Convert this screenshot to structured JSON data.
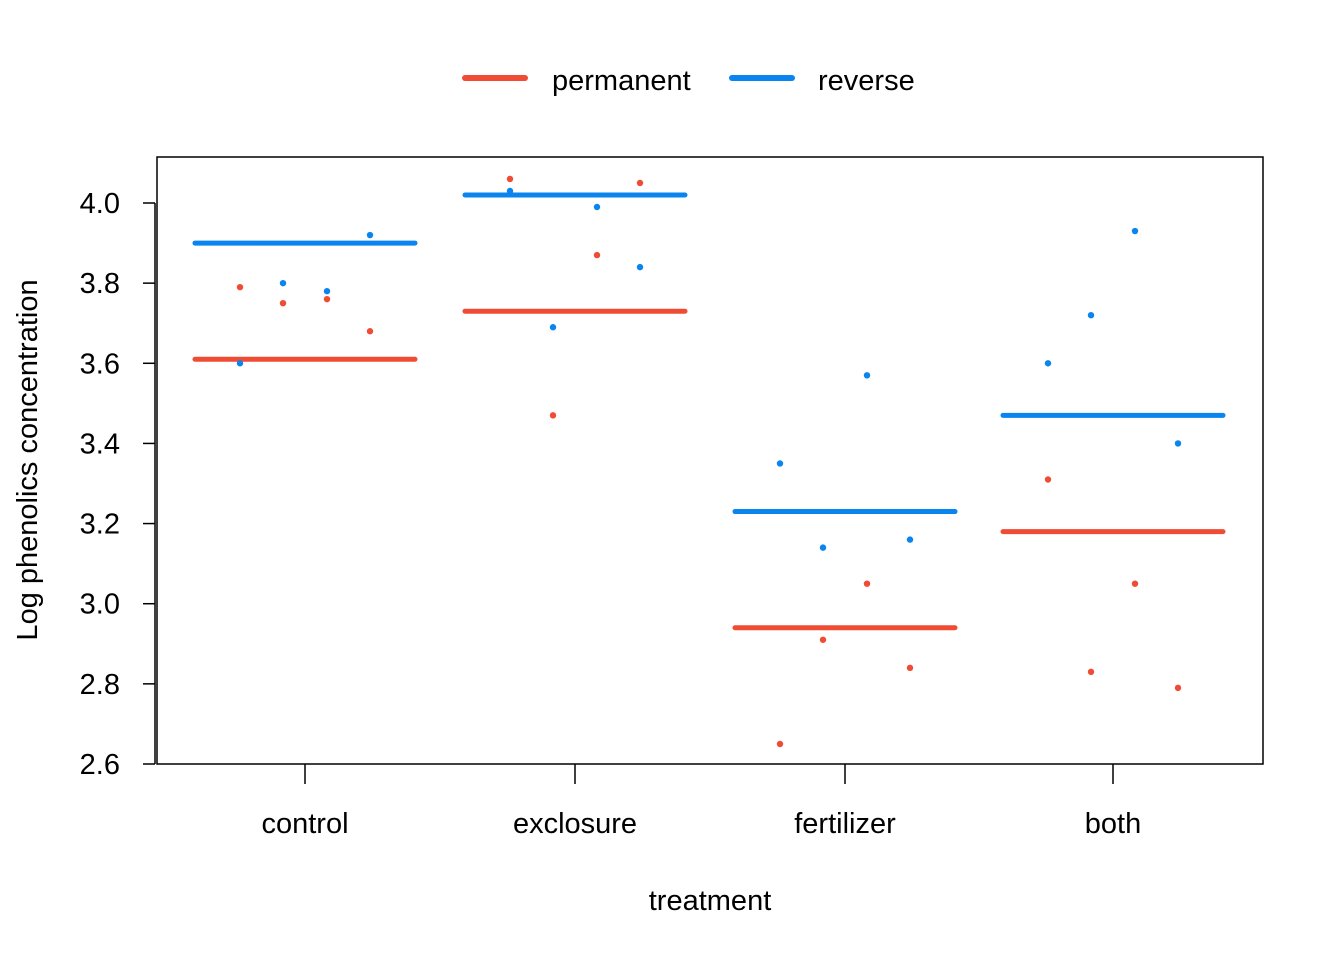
{
  "chart_data": {
    "type": "scatter",
    "xlabel": "treatment",
    "ylabel": "Log phenolics concentration",
    "categories": [
      "control",
      "exclosure",
      "fertilizer",
      "both"
    ],
    "ylim": [
      2.6,
      4.1
    ],
    "yticks": [
      2.6,
      2.8,
      3.0,
      3.2,
      3.4,
      3.6,
      3.8,
      4.0
    ],
    "ytick_labels": [
      "2.6",
      "2.8",
      "3.0",
      "3.2",
      "3.4",
      "3.6",
      "3.8",
      "4.0"
    ],
    "legend_position": "top-center, outside plot",
    "grid": false,
    "series": [
      {
        "name": "permanent",
        "color": "#F04B35",
        "means": [
          3.61,
          3.73,
          2.94,
          3.18
        ],
        "points": [
          {
            "category": "control",
            "jitter": 0,
            "y": 3.79
          },
          {
            "category": "control",
            "jitter": 1,
            "y": 3.75
          },
          {
            "category": "control",
            "jitter": 2,
            "y": 3.76
          },
          {
            "category": "control",
            "jitter": 3,
            "y": 3.68
          },
          {
            "category": "exclosure",
            "jitter": 0,
            "y": 4.06
          },
          {
            "category": "exclosure",
            "jitter": 1,
            "y": 3.47
          },
          {
            "category": "exclosure",
            "jitter": 2,
            "y": 3.87
          },
          {
            "category": "exclosure",
            "jitter": 3,
            "y": 4.05
          },
          {
            "category": "fertilizer",
            "jitter": 0,
            "y": 2.65
          },
          {
            "category": "fertilizer",
            "jitter": 1,
            "y": 2.91
          },
          {
            "category": "fertilizer",
            "jitter": 2,
            "y": 3.05
          },
          {
            "category": "fertilizer",
            "jitter": 3,
            "y": 2.84
          },
          {
            "category": "both",
            "jitter": 0,
            "y": 3.31
          },
          {
            "category": "both",
            "jitter": 1,
            "y": 2.83
          },
          {
            "category": "both",
            "jitter": 2,
            "y": 3.05
          },
          {
            "category": "both",
            "jitter": 3,
            "y": 2.79
          }
        ]
      },
      {
        "name": "reverse",
        "color": "#0A84EE",
        "means": [
          3.9,
          4.02,
          3.23,
          3.47
        ],
        "points": [
          {
            "category": "control",
            "jitter": 0,
            "y": 3.6
          },
          {
            "category": "control",
            "jitter": 1,
            "y": 3.8
          },
          {
            "category": "control",
            "jitter": 2,
            "y": 3.78
          },
          {
            "category": "control",
            "jitter": 3,
            "y": 3.92
          },
          {
            "category": "exclosure",
            "jitter": 0,
            "y": 4.03
          },
          {
            "category": "exclosure",
            "jitter": 1,
            "y": 3.69
          },
          {
            "category": "exclosure",
            "jitter": 2,
            "y": 3.99
          },
          {
            "category": "exclosure",
            "jitter": 3,
            "y": 3.84
          },
          {
            "category": "fertilizer",
            "jitter": 0,
            "y": 3.35
          },
          {
            "category": "fertilizer",
            "jitter": 1,
            "y": 3.14
          },
          {
            "category": "fertilizer",
            "jitter": 2,
            "y": 3.57
          },
          {
            "category": "fertilizer",
            "jitter": 3,
            "y": 3.16
          },
          {
            "category": "both",
            "jitter": 0,
            "y": 3.6
          },
          {
            "category": "both",
            "jitter": 1,
            "y": 3.72
          },
          {
            "category": "both",
            "jitter": 2,
            "y": 3.93
          },
          {
            "category": "both",
            "jitter": 3,
            "y": 3.4
          }
        ]
      }
    ]
  }
}
